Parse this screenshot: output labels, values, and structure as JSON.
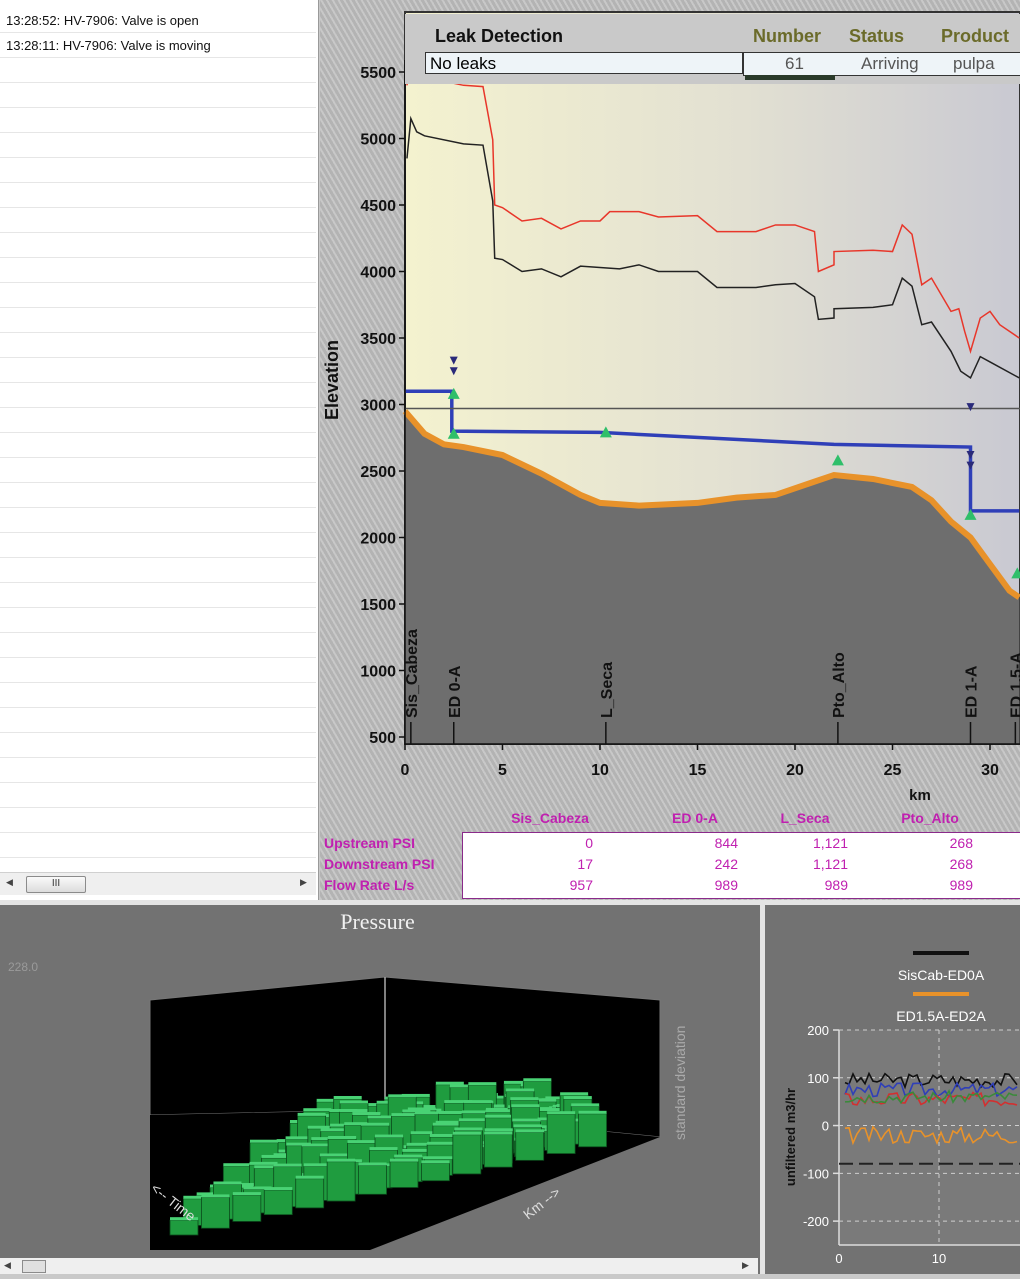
{
  "event_log": {
    "entries": [
      "13:28:52: HV-7906: Valve is open",
      "13:28:11: HV-7906: Valve is moving"
    ],
    "scroll_thumb_label": "III"
  },
  "leak_detection": {
    "title": "Leak Detection",
    "value": "No leaks",
    "columns": [
      "Number",
      "Status",
      "Product"
    ],
    "row": {
      "number": "61",
      "status": "Arriving",
      "product": "pulpa"
    },
    "colors": {
      "header": "#6b6b2a",
      "value": "#555555"
    }
  },
  "profile_chart": {
    "type": "line",
    "ylabel": "Elevation",
    "xlabel": "km",
    "yticks": [
      "5500",
      "5000",
      "4500",
      "4000",
      "3500",
      "3000",
      "2500",
      "2000",
      "1500",
      "1000",
      "500"
    ],
    "xticks": [
      "0",
      "5",
      "10",
      "15",
      "20",
      "25",
      "30"
    ],
    "ylim": [
      500,
      5800
    ],
    "xlim": [
      0,
      31.5
    ],
    "stations": [
      {
        "name": "Sis_Cabeza",
        "km": 0.3
      },
      {
        "name": "ED 0-A",
        "km": 2.5
      },
      {
        "name": "L_Seca",
        "km": 10.3
      },
      {
        "name": "Pto_Alto",
        "km": 22.2
      },
      {
        "name": "ED 1-A",
        "km": 29.0
      },
      {
        "name": "ED 1.5-A",
        "km": 31.3
      }
    ],
    "series": [
      {
        "color": "#e8362a",
        "kind": "max-pressure",
        "points": [
          [
            0.1,
            5400
          ],
          [
            0.3,
            5620
          ],
          [
            0.6,
            5500
          ],
          [
            1,
            5460
          ],
          [
            3,
            5400
          ],
          [
            4,
            5390
          ],
          [
            4.5,
            4990
          ],
          [
            4.6,
            4500
          ],
          [
            5,
            4480
          ],
          [
            6,
            4380
          ],
          [
            7,
            4400
          ],
          [
            8,
            4320
          ],
          [
            9,
            4380
          ],
          [
            10,
            4380
          ],
          [
            10.5,
            4450
          ],
          [
            12,
            4450
          ],
          [
            13,
            4410
          ],
          [
            15,
            4420
          ],
          [
            16,
            4300
          ],
          [
            18,
            4300
          ],
          [
            19,
            4350
          ],
          [
            20,
            4350
          ],
          [
            21,
            4300
          ],
          [
            21.2,
            4000
          ],
          [
            22,
            4050
          ],
          [
            22,
            4150
          ],
          [
            24,
            4160
          ],
          [
            25,
            4150
          ],
          [
            25.5,
            4350
          ],
          [
            26,
            4280
          ],
          [
            26.5,
            3900
          ],
          [
            27,
            3950
          ],
          [
            28,
            3700
          ],
          [
            28.4,
            3720
          ],
          [
            28.7,
            3550
          ],
          [
            29,
            3400
          ],
          [
            29.5,
            3650
          ],
          [
            30,
            3700
          ],
          [
            30.5,
            3600
          ],
          [
            31.5,
            3500
          ]
        ]
      },
      {
        "color": "#222222",
        "kind": "current-pressure",
        "points": [
          [
            0.1,
            4850
          ],
          [
            0.3,
            5150
          ],
          [
            0.6,
            5050
          ],
          [
            1,
            5020
          ],
          [
            3,
            4960
          ],
          [
            4,
            4950
          ],
          [
            4.5,
            4530
          ],
          [
            4.6,
            4100
          ],
          [
            5,
            4090
          ],
          [
            6,
            4000
          ],
          [
            7,
            4020
          ],
          [
            8,
            3960
          ],
          [
            9,
            4040
          ],
          [
            11,
            4020
          ],
          [
            12,
            4050
          ],
          [
            13,
            4000
          ],
          [
            15,
            4000
          ],
          [
            16,
            3880
          ],
          [
            18,
            3880
          ],
          [
            19,
            3900
          ],
          [
            20,
            3910
          ],
          [
            21,
            3810
          ],
          [
            21.2,
            3640
          ],
          [
            22,
            3650
          ],
          [
            22,
            3720
          ],
          [
            24,
            3730
          ],
          [
            25,
            3750
          ],
          [
            25.5,
            3950
          ],
          [
            26,
            3890
          ],
          [
            26.5,
            3600
          ],
          [
            27,
            3620
          ],
          [
            28,
            3400
          ],
          [
            28.5,
            3250
          ],
          [
            29,
            3200
          ],
          [
            29.5,
            3360
          ],
          [
            30,
            3320
          ],
          [
            31.5,
            3200
          ]
        ]
      },
      {
        "color": "#2f3fb8",
        "kind": "hydraulic-grade",
        "points": [
          [
            0,
            3100
          ],
          [
            2.4,
            3100
          ],
          [
            2.4,
            2800
          ],
          [
            10,
            2790
          ],
          [
            22,
            2700
          ],
          [
            29,
            2680
          ],
          [
            29,
            2200
          ],
          [
            31.5,
            2200
          ]
        ]
      },
      {
        "color": "#e8922a",
        "kind": "terrain",
        "points": [
          [
            0,
            2950
          ],
          [
            1,
            2780
          ],
          [
            2,
            2700
          ],
          [
            3,
            2680
          ],
          [
            5,
            2620
          ],
          [
            7,
            2480
          ],
          [
            9,
            2320
          ],
          [
            10,
            2260
          ],
          [
            12,
            2240
          ],
          [
            15,
            2260
          ],
          [
            17,
            2300
          ],
          [
            19,
            2320
          ],
          [
            21,
            2420
          ],
          [
            22,
            2470
          ],
          [
            24,
            2440
          ],
          [
            26,
            2380
          ],
          [
            27,
            2280
          ],
          [
            28,
            2120
          ],
          [
            29,
            2000
          ],
          [
            30,
            1800
          ],
          [
            31,
            1600
          ],
          [
            31.5,
            1550
          ]
        ]
      }
    ],
    "reference_line_y": 2970,
    "triangle_markers": [
      [
        2.5,
        3080
      ],
      [
        2.5,
        2780
      ],
      [
        10.3,
        2790
      ],
      [
        22.2,
        2580
      ],
      [
        29.0,
        2170
      ],
      [
        31.4,
        1730
      ]
    ],
    "colors": {
      "fill_terrain": "#6e6e6e",
      "plot_bg_light": "#f2f0cf"
    }
  },
  "flow_table": {
    "columns": [
      "Sis_Cabeza",
      "ED 0-A",
      "L_Seca",
      "Pto_Alto"
    ],
    "rows": [
      {
        "label": "Upstream PSI",
        "values": [
          "0",
          "844",
          "1,121",
          "268"
        ]
      },
      {
        "label": "Downstream PSI",
        "values": [
          "17",
          "242",
          "1,121",
          "268"
        ]
      },
      {
        "label": "Flow Rate L/s",
        "values": [
          "957",
          "989",
          "989",
          "989"
        ]
      }
    ],
    "color": "#c020b0"
  },
  "pressure_panel": {
    "title": "Pressure",
    "value_label": "228.0",
    "axis_time": "<-- Time",
    "axis_km": "Km -->",
    "axis_side": "standard deviation",
    "bar_color": "#1f9c3f"
  },
  "trend_chart": {
    "type": "line",
    "ylabel": "unfiltered m3/hr",
    "yticks": [
      "200",
      "100",
      "0",
      "-100",
      "-200"
    ],
    "xticks": [
      "0",
      "10"
    ],
    "legend": [
      {
        "name": "SisCab-ED0A",
        "color": "#111111"
      },
      {
        "name": "ED1.5A-ED2A",
        "color": "#e8922a"
      }
    ]
  }
}
